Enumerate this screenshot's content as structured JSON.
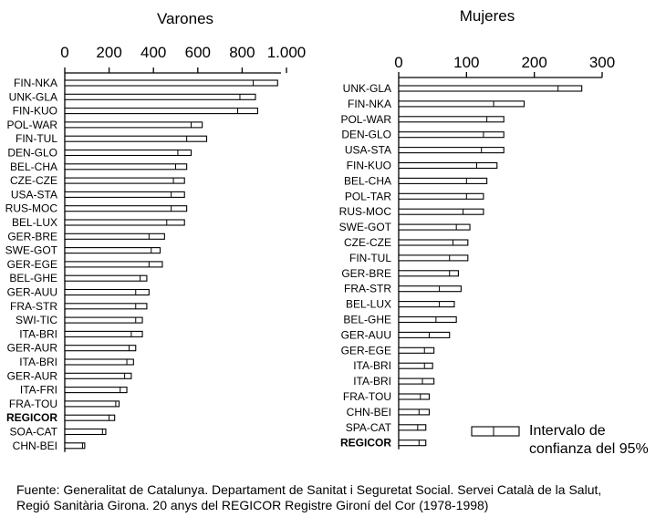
{
  "chart_data": [
    {
      "type": "bar",
      "orientation": "horizontal",
      "title": "Varones",
      "xlim": [
        0,
        1000
      ],
      "ticks": [
        "0",
        "200",
        "400",
        "600",
        "800",
        "1.000"
      ],
      "tick_values": [
        0,
        200,
        400,
        600,
        800,
        1000
      ],
      "categories": [
        "FIN-NKA",
        "UNK-GLA",
        "FIN-KUO",
        "POL-WAR",
        "FIN-TUL",
        "DEN-GLO",
        "BEL-CHA",
        "CZE-CZE",
        "USA-STA",
        "RUS-MOC",
        "BEL-LUX",
        "GER-BRE",
        "SWE-GOT",
        "GER-EGE",
        "BEL-GHE",
        "GER-AUU",
        "FRA-STR",
        "SWI-TIC",
        "ITA-BRI",
        "GER-AUR",
        "ITA-BRI",
        "GER-AUR",
        "ITA-FRI",
        "FRA-TOU",
        "REGICOR",
        "SOA-CAT",
        "CHN-BEI"
      ],
      "bold_categories": [
        "REGICOR"
      ],
      "ci_low": [
        850,
        790,
        780,
        570,
        550,
        510,
        500,
        490,
        480,
        480,
        460,
        380,
        390,
        380,
        340,
        320,
        320,
        320,
        300,
        290,
        280,
        270,
        250,
        230,
        200,
        170,
        80
      ],
      "ci_high": [
        960,
        860,
        870,
        620,
        640,
        570,
        550,
        540,
        540,
        550,
        540,
        450,
        430,
        440,
        370,
        380,
        370,
        350,
        350,
        320,
        310,
        300,
        280,
        245,
        225,
        185,
        90
      ]
    },
    {
      "type": "bar",
      "orientation": "horizontal",
      "title": "Mujeres",
      "xlim": [
        0,
        300
      ],
      "ticks": [
        "0",
        "100",
        "200",
        "300"
      ],
      "tick_values": [
        0,
        100,
        200,
        300
      ],
      "categories": [
        "UNK-GLA",
        "FIN-NKA",
        "POL-WAR",
        "DEN-GLO",
        "USA-STA",
        "FIN-KUO",
        "BEL-CHA",
        "POL-TAR",
        "RUS-MOC",
        "SWE-GOT",
        "CZE-CZE",
        "FIN-TUL",
        "GER-BRE",
        "FRA-STR",
        "BEL-LUX",
        "BEL-GHE",
        "GER-AUU",
        "GER-EGE",
        "ITA-BRI",
        "ITA-BRI",
        "FRA-TOU",
        "CHN-BEI",
        "SPA-CAT",
        "REGICOR"
      ],
      "bold_categories": [
        "REGICOR"
      ],
      "ci_low": [
        235,
        140,
        130,
        125,
        122,
        115,
        100,
        100,
        95,
        85,
        80,
        75,
        75,
        60,
        60,
        55,
        45,
        38,
        38,
        35,
        32,
        30,
        28,
        30
      ],
      "ci_high": [
        270,
        185,
        155,
        155,
        155,
        145,
        130,
        125,
        125,
        105,
        102,
        102,
        88,
        92,
        82,
        85,
        75,
        52,
        50,
        52,
        45,
        45,
        40,
        40
      ]
    }
  ],
  "legend": {
    "text_line1": "Intervalo de",
    "text_line2": "confianza del 95%"
  },
  "source": {
    "line1": "Fuente: Generalitat de Catalunya. Departament de Sanitat i Seguretat Social. Servei Català de la Salut,",
    "line2": "Regió Sanitària Girona. 20 anys del REGICOR Registre Gironí del Cor (1978-1998)"
  }
}
